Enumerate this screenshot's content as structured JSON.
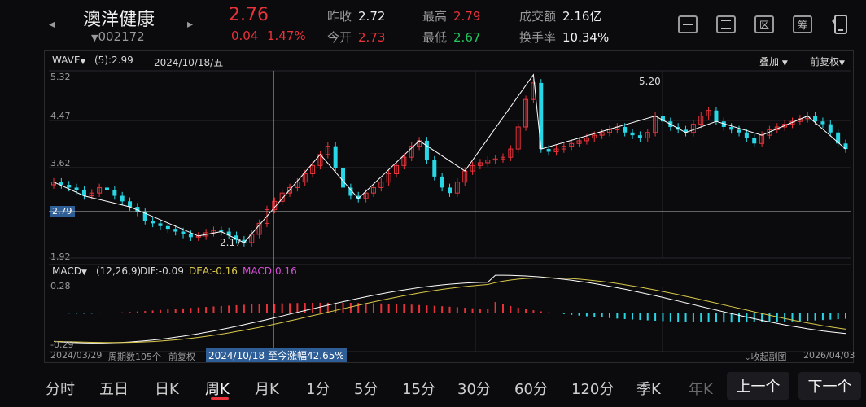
{
  "header": {
    "name": "澳洋健康",
    "code": "002172",
    "price": "2.76",
    "change": "0.04",
    "change_pct": "1.47%",
    "stats": {
      "prev_close_label": "昨收",
      "prev_close": "2.72",
      "open_label": "今开",
      "open": "2.73",
      "high_label": "最高",
      "high": "2.79",
      "low_label": "最低",
      "low": "2.67",
      "volume_label": "成交额",
      "volume": "2.16亿",
      "turnover_label": "换手率",
      "turnover": "10.34%"
    },
    "icons": [
      "minus-box-icon",
      "chart-box-icon",
      "district-box-icon",
      "chip-box-icon",
      "switch-device-icon"
    ],
    "icon_glyphs": {
      "district": "区",
      "chip": "筹"
    }
  },
  "main_chart": {
    "indicator": "WAVE",
    "indicator_param": "(5):2.99",
    "crosshair_date": "2024/10/18/五",
    "overlay_label": "叠加",
    "adjust_label": "前复权",
    "y_ticks": [
      "5.32",
      "4.47",
      "3.62",
      "2.79",
      "1.92"
    ],
    "crosshair_price": "2.79",
    "annotation_high": "5.20",
    "annotation_low": "2.17"
  },
  "sub_chart": {
    "indicator": "MACD",
    "params": "(12,26,9)",
    "dif": "DIF:-0.09",
    "dea": "DEA:-0.16",
    "macd": "MACD:0.16",
    "y_top": "0.28",
    "y_bottom": "-0.29"
  },
  "footer": {
    "start_date": "2024/03/29",
    "period_count": "周期数105个",
    "adjust": "前复权",
    "range_info": "2024/10/18 至今涨幅42.65%",
    "collapse": "收起副图",
    "end_date": "2026/04/03"
  },
  "tabs": [
    "分时",
    "五日",
    "日K",
    "周K",
    "月K",
    "1分",
    "5分",
    "15分",
    "30分",
    "60分",
    "120分",
    "季K",
    "年K"
  ],
  "active_tab": "周K",
  "nav": {
    "prev": "上一个",
    "next": "下一个"
  },
  "colors": {
    "up": "#e8333a",
    "down": "#28d7e6",
    "line": "#ffffff",
    "dea": "#d8c84a",
    "bg": "#0b0b0d"
  }
}
